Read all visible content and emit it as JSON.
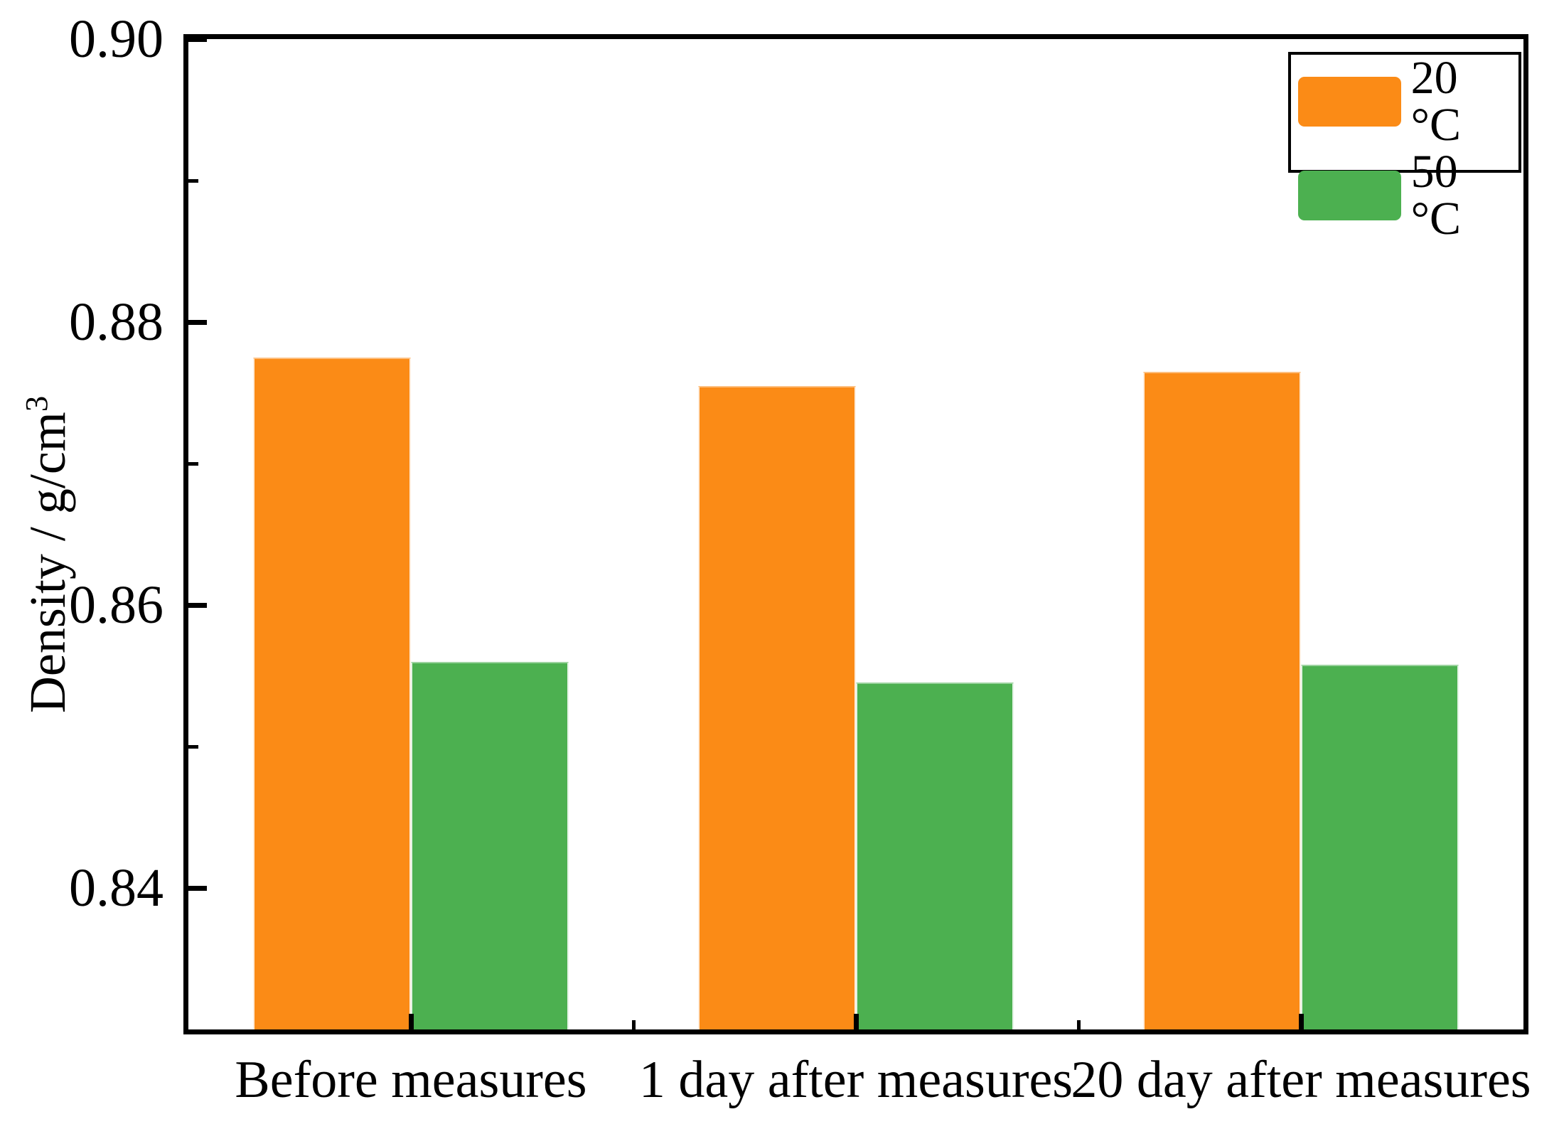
{
  "chart_data": {
    "type": "bar",
    "title": "",
    "categories": [
      "Before measures",
      "1 day after measures",
      "20 day after measures"
    ],
    "series": [
      {
        "name": "20 °C",
        "color": "#FB8B16",
        "values": [
          0.8775,
          0.8755,
          0.8765
        ]
      },
      {
        "name": "50 °C",
        "color": "#4CB050",
        "values": [
          0.856,
          0.8545,
          0.8558
        ]
      }
    ],
    "xlabel": "",
    "ylabel": "Density / g/cm³",
    "ylabel_base": "Density / g/cm",
    "ylabel_exponent": "3",
    "ylim": [
      0.83,
      0.9
    ],
    "yticks_major": [
      0.84,
      0.86,
      0.88,
      0.9
    ],
    "ytick_labels": [
      "0.84",
      "0.86",
      "0.88",
      "0.90"
    ],
    "yticks_minor": [
      0.85,
      0.87,
      0.89
    ],
    "grid": false,
    "legend": {
      "position": "top-right",
      "entries": [
        "20 °C",
        "50 °C"
      ]
    },
    "axis_color": "#000000",
    "background": "#ffffff"
  }
}
